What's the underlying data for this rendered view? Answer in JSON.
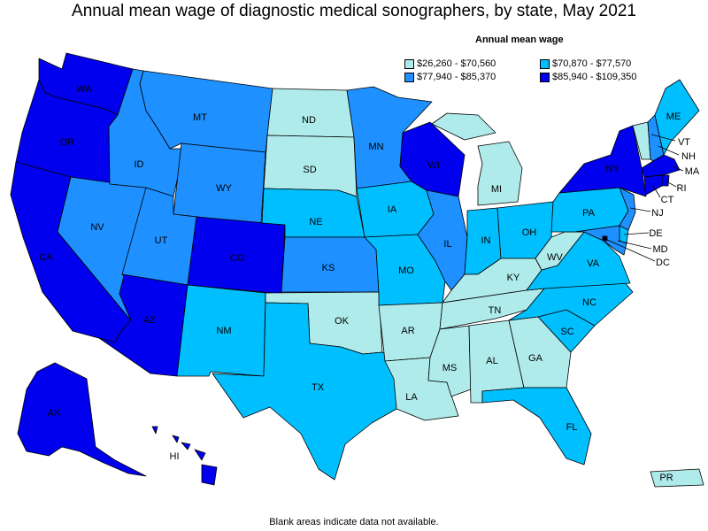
{
  "title": "Annual mean wage of diagnostic medical sonographers, by state, May 2021",
  "legend": {
    "title": "Annual mean wage",
    "bins": [
      {
        "label": "$26,260 - $70,560",
        "color": "#b0ebeb"
      },
      {
        "label": "$70,870 - $77,570",
        "color": "#00bfff"
      },
      {
        "label": "$77,940 - $85,370",
        "color": "#1e90ff"
      },
      {
        "label": "$85,940 - $109,350",
        "color": "#0000ee"
      }
    ]
  },
  "footnote": "Blank areas indicate data not available.",
  "states": [
    {
      "abbr": "WA",
      "bin": 3
    },
    {
      "abbr": "OR",
      "bin": 3
    },
    {
      "abbr": "CA",
      "bin": 3
    },
    {
      "abbr": "NV",
      "bin": 2
    },
    {
      "abbr": "ID",
      "bin": 2
    },
    {
      "abbr": "MT",
      "bin": 2
    },
    {
      "abbr": "WY",
      "bin": 2
    },
    {
      "abbr": "UT",
      "bin": 2
    },
    {
      "abbr": "CO",
      "bin": 3
    },
    {
      "abbr": "AZ",
      "bin": 3
    },
    {
      "abbr": "NM",
      "bin": 1
    },
    {
      "abbr": "ND",
      "bin": 0
    },
    {
      "abbr": "SD",
      "bin": 0
    },
    {
      "abbr": "NE",
      "bin": 1
    },
    {
      "abbr": "KS",
      "bin": 2
    },
    {
      "abbr": "OK",
      "bin": 0
    },
    {
      "abbr": "TX",
      "bin": 1
    },
    {
      "abbr": "MN",
      "bin": 2
    },
    {
      "abbr": "IA",
      "bin": 1
    },
    {
      "abbr": "MO",
      "bin": 1
    },
    {
      "abbr": "AR",
      "bin": 0
    },
    {
      "abbr": "LA",
      "bin": 0
    },
    {
      "abbr": "WI",
      "bin": 3
    },
    {
      "abbr": "IL",
      "bin": 2
    },
    {
      "abbr": "MI",
      "bin": 0
    },
    {
      "abbr": "IN",
      "bin": 1
    },
    {
      "abbr": "OH",
      "bin": 1
    },
    {
      "abbr": "KY",
      "bin": 0
    },
    {
      "abbr": "TN",
      "bin": 0
    },
    {
      "abbr": "MS",
      "bin": 0
    },
    {
      "abbr": "AL",
      "bin": 0
    },
    {
      "abbr": "GA",
      "bin": 0
    },
    {
      "abbr": "FL",
      "bin": 1
    },
    {
      "abbr": "SC",
      "bin": 1
    },
    {
      "abbr": "NC",
      "bin": 1
    },
    {
      "abbr": "VA",
      "bin": 1
    },
    {
      "abbr": "WV",
      "bin": 0
    },
    {
      "abbr": "PA",
      "bin": 1
    },
    {
      "abbr": "NY",
      "bin": 3
    },
    {
      "abbr": "VT",
      "bin": 0
    },
    {
      "abbr": "NH",
      "bin": 2
    },
    {
      "abbr": "ME",
      "bin": 1
    },
    {
      "abbr": "MA",
      "bin": 3
    },
    {
      "abbr": "RI",
      "bin": 3
    },
    {
      "abbr": "CT",
      "bin": 3
    },
    {
      "abbr": "NJ",
      "bin": 2
    },
    {
      "abbr": "DE",
      "bin": 1
    },
    {
      "abbr": "MD",
      "bin": 2
    },
    {
      "abbr": "DC",
      "bin": 3
    },
    {
      "abbr": "AK",
      "bin": 3
    },
    {
      "abbr": "HI",
      "bin": 3
    },
    {
      "abbr": "PR",
      "bin": 0
    }
  ]
}
